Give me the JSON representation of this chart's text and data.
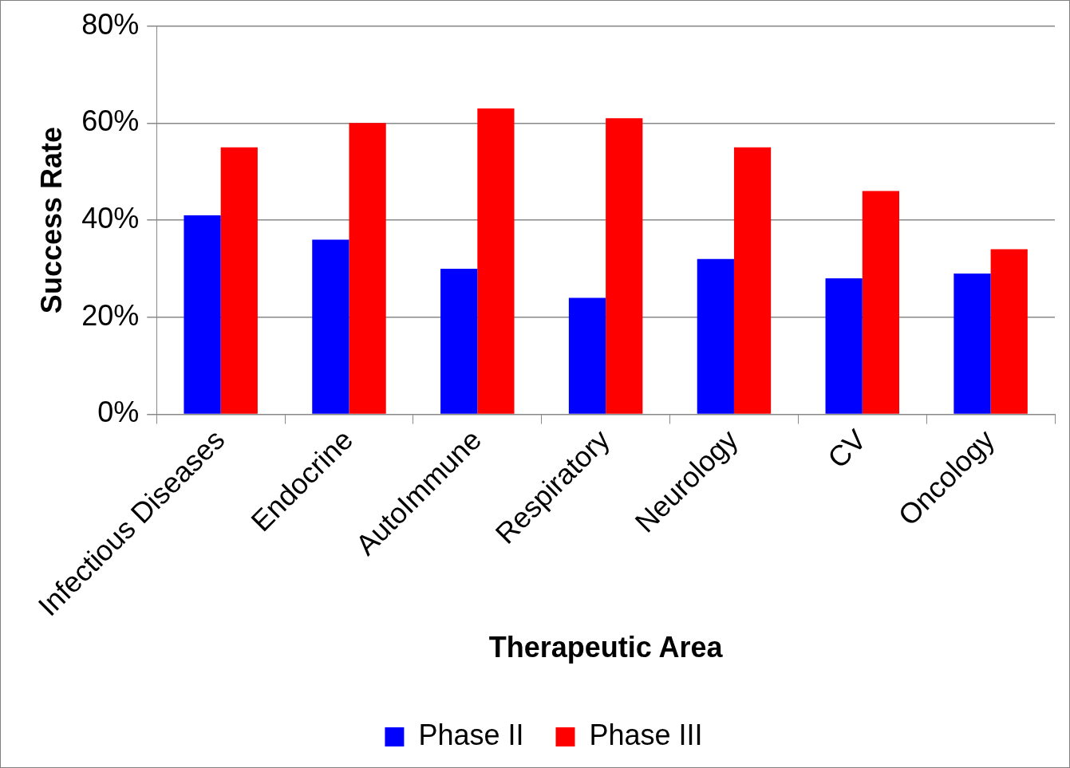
{
  "chart_data": {
    "type": "bar",
    "xlabel": "Therapeutic Area",
    "ylabel": "Success Rate",
    "categories": [
      "Infectious Diseases",
      "Endocrine",
      "AutoImmune",
      "Respiratory",
      "Neurology",
      "CV",
      "Oncology"
    ],
    "series": [
      {
        "name": "Phase II",
        "color": "#0000ff",
        "values": [
          41,
          36,
          30,
          24,
          32,
          28,
          29
        ]
      },
      {
        "name": "Phase III",
        "color": "#ff0000",
        "values": [
          55,
          60,
          63,
          61,
          55,
          46,
          34
        ]
      }
    ],
    "ylim": [
      0,
      80
    ],
    "yticks": [
      {
        "value": 0,
        "label": "0%"
      },
      {
        "value": 20,
        "label": "20%"
      },
      {
        "value": 40,
        "label": "40%"
      },
      {
        "value": 60,
        "label": "60%"
      },
      {
        "value": 80,
        "label": "80%"
      }
    ],
    "grid": "y",
    "legend": "bottom"
  }
}
